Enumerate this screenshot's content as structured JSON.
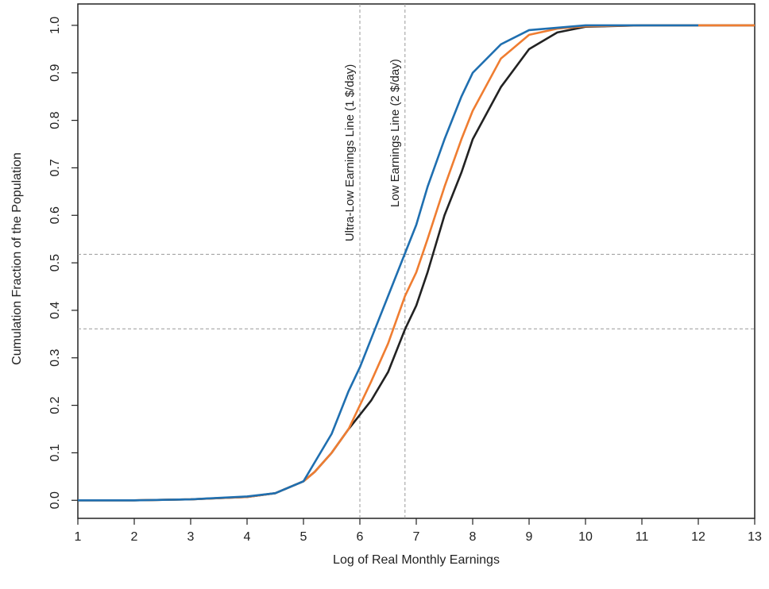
{
  "chart_data": {
    "type": "line",
    "x_label": "Log of Real Monthly Earnings",
    "y_label": "Cumulation Fraction of the Population",
    "x": [
      1,
      2,
      3,
      4,
      4.5,
      5,
      5.2,
      5.5,
      5.8,
      6,
      6.2,
      6.5,
      6.8,
      7,
      7.2,
      7.5,
      7.8,
      8,
      8.5,
      9,
      9.5,
      10,
      11,
      12,
      13
    ],
    "series": [
      {
        "color": "#222222",
        "values": [
          0,
          0,
          0.002,
          0.007,
          0.015,
          0.04,
          0.06,
          0.1,
          0.15,
          0.18,
          0.21,
          0.27,
          0.36,
          0.41,
          0.48,
          0.6,
          0.69,
          0.76,
          0.87,
          0.95,
          0.985,
          0.997,
          1,
          1,
          1
        ]
      },
      {
        "color": "#ef7d31",
        "values": [
          0,
          0,
          0.002,
          0.007,
          0.015,
          0.04,
          0.06,
          0.1,
          0.15,
          0.2,
          0.25,
          0.33,
          0.43,
          0.48,
          0.55,
          0.66,
          0.76,
          0.82,
          0.93,
          0.98,
          0.993,
          0.998,
          1,
          1,
          1
        ]
      },
      {
        "color": "#1f6fb0",
        "values": [
          0,
          0,
          0.002,
          0.008,
          0.015,
          0.04,
          0.08,
          0.14,
          0.23,
          0.28,
          0.34,
          0.43,
          0.52,
          0.58,
          0.66,
          0.76,
          0.85,
          0.9,
          0.96,
          0.99,
          0.995,
          1,
          1,
          1,
          null
        ]
      }
    ],
    "xlim": [
      1,
      13
    ],
    "ylim": [
      -0.038,
      1.045
    ],
    "xticks": [
      1,
      2,
      3,
      4,
      5,
      6,
      7,
      8,
      9,
      10,
      11,
      12,
      13
    ],
    "yticks": [
      {
        "value": 0,
        "label": "0.0"
      },
      0.1,
      0.2,
      0.3,
      0.4,
      0.5,
      0.6,
      0.7,
      0.8,
      0.9,
      {
        "value": 1,
        "label": "1.0"
      }
    ],
    "vlines": [
      6,
      6.8
    ],
    "hlines": [
      0.518,
      0.361
    ],
    "annotations": [
      {
        "text": "Ultra-Low Earnings Line (1 $/day)",
        "x": 6,
        "y": 0.545
      },
      {
        "text": "Low Earnings Line (2 $/day)",
        "x": 6.8,
        "y": 0.617
      }
    ]
  }
}
